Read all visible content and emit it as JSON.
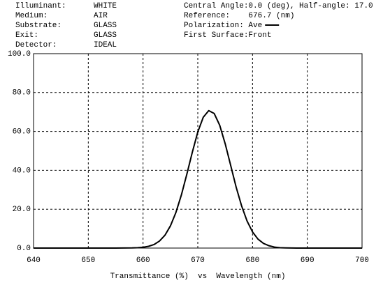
{
  "chart_data": {
    "type": "line",
    "info_left": [
      {
        "label": "Illuminant:",
        "value": "WHITE"
      },
      {
        "label": "Medium:",
        "value": "AIR"
      },
      {
        "label": "Substrate:",
        "value": "GLASS"
      },
      {
        "label": "Exit:",
        "value": "GLASS"
      },
      {
        "label": "Detector:",
        "value": "IDEAL"
      }
    ],
    "info_right": [
      "Central Angle:0.0 (deg), Half-angle: 17.0",
      "Reference:    676.7 (nm)",
      "Polarization: Ave",
      "First Surface:Front"
    ],
    "xlabel": "Transmittance (%)  vs  Wavelength (nm)",
    "x": [
      640,
      650,
      655,
      658,
      659,
      660,
      661,
      662,
      663,
      664,
      665,
      666,
      667,
      668,
      669,
      670,
      671,
      672,
      673,
      674,
      675,
      676,
      677,
      678,
      679,
      680,
      681,
      682,
      683,
      684,
      685,
      686,
      688,
      695,
      700
    ],
    "values": [
      0,
      0,
      0,
      0.1,
      0.2,
      0.4,
      0.9,
      1.8,
      3.6,
      6.6,
      11.4,
      18.3,
      27.3,
      38.0,
      49.3,
      59.7,
      67.3,
      70.7,
      69.2,
      63.2,
      53.7,
      42.6,
      31.4,
      21.7,
      13.9,
      8.3,
      4.6,
      2.4,
      1.2,
      0.5,
      0.2,
      0.1,
      0,
      0,
      0
    ],
    "color": "#000000",
    "xlim": [
      640,
      700
    ],
    "xticks": [
      640,
      650,
      660,
      670,
      680,
      690,
      700
    ],
    "ylim": [
      0,
      100
    ],
    "yticks": [
      {
        "value": 0,
        "label": "0.0"
      },
      {
        "value": 20,
        "label": "20.0"
      },
      {
        "value": 40,
        "label": "40.0"
      },
      {
        "value": 60,
        "label": "60.0"
      },
      {
        "value": 80,
        "label": "80.0"
      },
      {
        "value": 100,
        "label": "100.0"
      }
    ],
    "grid": true
  }
}
